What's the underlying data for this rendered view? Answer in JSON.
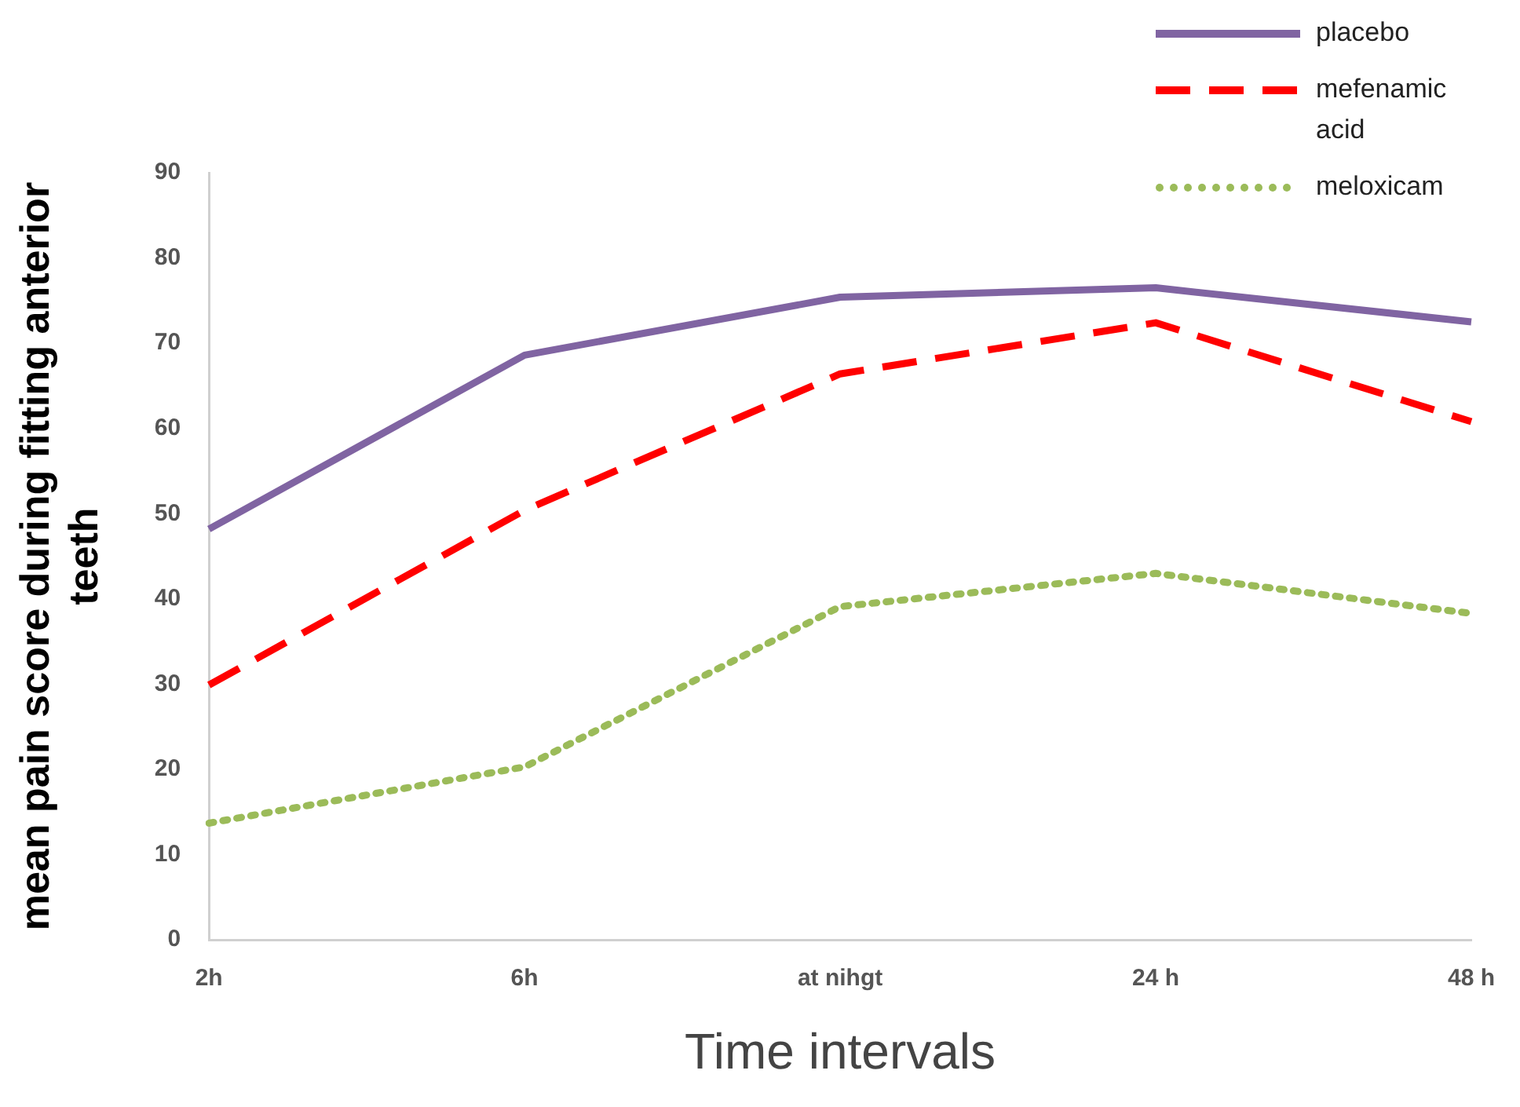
{
  "chart_data": {
    "type": "line",
    "xlabel": "Time intervals",
    "ylabel": "mean pain score during fitting anterior teeth",
    "categories": [
      "2h",
      "6h",
      "at nihgt",
      "24 h",
      "48 h"
    ],
    "ylim": [
      0,
      90
    ],
    "yticks": [
      0,
      10,
      20,
      30,
      40,
      50,
      60,
      70,
      80,
      90
    ],
    "grid": false,
    "legend": "top right",
    "marker": "none",
    "series": [
      {
        "name": "placebo",
        "color": "#8064a2",
        "line_style": "solid",
        "values": [
          48.2,
          68.6,
          75.4,
          76.5,
          72.5
        ]
      },
      {
        "name": "mefenamic acid",
        "color": "#ff0000",
        "line_style": "dashed",
        "values": [
          29.9,
          50.4,
          66.4,
          72.4,
          60.8
        ]
      },
      {
        "name": "meloxicam",
        "color": "#9bbb59",
        "line_style": "dotted",
        "values": [
          13.7,
          20.3,
          39.1,
          43.0,
          38.3
        ]
      }
    ]
  }
}
